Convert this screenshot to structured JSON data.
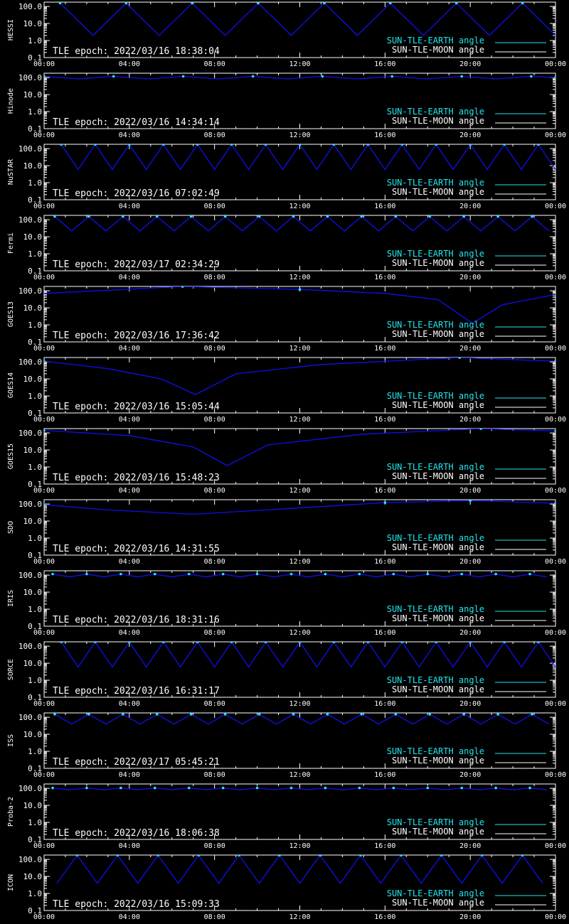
{
  "colors": {
    "background": "#000000",
    "foreground": "#ffffff",
    "earth_curve": "#1010ee",
    "earth_highlight": "#22e6ee",
    "earth_legend": "#22e6ee",
    "moon_legend": "#ffffff"
  },
  "legend": {
    "earth": "SUN-TLE-EARTH angle",
    "moon": "SUN-TLE-MOON angle"
  },
  "axes": {
    "x_ticks": [
      "00:00",
      "04:00",
      "08:00",
      "12:00",
      "16:00",
      "20:00",
      "00:00"
    ],
    "y_ticks": [
      "100.0",
      "10.0",
      "1.0",
      "0.1"
    ],
    "x_range_hours": [
      0,
      24
    ],
    "y_range": [
      0.1,
      180
    ],
    "y_scale": "log",
    "grid": false
  },
  "chart_data": [
    {
      "type": "line",
      "ylabel": "HESSI",
      "annotation": "TLE epoch: 2022/03/16 18:38:04",
      "series": [
        {
          "name": "SUN-TLE-EARTH angle",
          "x": [
            0.75,
            2.3,
            3.85,
            5.4,
            6.95,
            8.5,
            10.05,
            11.6,
            13.15,
            14.7,
            16.25,
            17.8,
            19.35,
            20.9,
            22.45,
            24.0
          ],
          "y": [
            158,
            2,
            158,
            2,
            158,
            2,
            158,
            2,
            158,
            2,
            158,
            2,
            158,
            2,
            158,
            2
          ]
        }
      ]
    },
    {
      "type": "line",
      "ylabel": "Hinode",
      "annotation": "TLE epoch: 2022/03/16 14:34:14",
      "series": [
        {
          "name": "SUN-TLE-EARTH angle",
          "x": [
            0,
            1.63,
            3.26,
            4.9,
            6.53,
            8.16,
            9.8,
            11.43,
            13.06,
            14.7,
            16.33,
            17.96,
            19.6,
            21.23,
            22.86,
            24
          ],
          "y": [
            118,
            83,
            118,
            83,
            118,
            83,
            118,
            83,
            118,
            83,
            118,
            83,
            118,
            83,
            118,
            100
          ]
        }
      ]
    },
    {
      "type": "line",
      "ylabel": "NuSTAR",
      "annotation": "TLE epoch: 2022/03/16 07:02:49",
      "series": [
        {
          "name": "SUN-TLE-EARTH angle",
          "x": [
            0.8,
            1.6,
            2.4,
            3.2,
            4.0,
            4.8,
            5.6,
            6.4,
            7.2,
            8.0,
            8.8,
            9.6,
            10.4,
            11.2,
            12.0,
            12.8,
            13.6,
            14.4,
            15.2,
            16.0,
            16.8,
            17.6,
            18.4,
            19.2,
            20.0,
            20.8,
            21.6,
            22.4,
            23.2,
            24.0
          ],
          "y": [
            175,
            6,
            175,
            6,
            175,
            6,
            175,
            6,
            175,
            6,
            175,
            6,
            175,
            6,
            175,
            6,
            175,
            6,
            175,
            6,
            175,
            6,
            175,
            6,
            175,
            6,
            175,
            6,
            175,
            6
          ]
        }
      ]
    },
    {
      "type": "line",
      "ylabel": "Fermi",
      "annotation": "TLE epoch: 2022/03/17 02:34:29",
      "series": [
        {
          "name": "SUN-TLE-EARTH angle",
          "x": [
            0.5,
            1.3,
            2.1,
            2.9,
            3.7,
            4.5,
            5.3,
            6.1,
            6.9,
            7.7,
            8.5,
            9.3,
            10.1,
            10.9,
            11.7,
            12.5,
            13.3,
            14.1,
            14.9,
            15.7,
            16.5,
            17.3,
            18.1,
            18.9,
            19.7,
            20.5,
            21.3,
            22.1,
            22.9,
            23.7
          ],
          "y": [
            155,
            22,
            155,
            22,
            155,
            22,
            155,
            22,
            155,
            22,
            155,
            22,
            155,
            22,
            155,
            22,
            155,
            22,
            155,
            22,
            155,
            22,
            155,
            22,
            155,
            22,
            155,
            22,
            155,
            22
          ]
        }
      ]
    },
    {
      "type": "line",
      "ylabel": "GOES13",
      "annotation": "TLE epoch: 2022/03/16 17:36:42",
      "series": [
        {
          "name": "SUN-TLE-EARTH angle",
          "x": [
            0,
            6.5,
            12,
            16,
            18.5,
            20.1,
            21.5,
            24
          ],
          "y": [
            70,
            178,
            120,
            70,
            30,
            1.2,
            15,
            60
          ]
        }
      ]
    },
    {
      "type": "line",
      "ylabel": "GOES14",
      "annotation": "TLE epoch: 2022/03/16 15:05:44",
      "series": [
        {
          "name": "SUN-TLE-EARTH angle",
          "x": [
            0,
            3,
            5.5,
            7.1,
            9,
            13,
            19.5,
            24
          ],
          "y": [
            110,
            40,
            10,
            1.2,
            20,
            70,
            178,
            110
          ]
        }
      ]
    },
    {
      "type": "line",
      "ylabel": "GOES15",
      "annotation": "TLE epoch: 2022/03/16 15:48:23",
      "series": [
        {
          "name": "SUN-TLE-EARTH angle",
          "x": [
            0,
            4,
            7,
            8.6,
            10.5,
            15,
            20.5,
            24
          ],
          "y": [
            140,
            70,
            15,
            1.2,
            20,
            85,
            178,
            130
          ]
        }
      ]
    },
    {
      "type": "line",
      "ylabel": "SDO",
      "annotation": "TLE epoch: 2022/03/16 14:31:55",
      "series": [
        {
          "name": "SUN-TLE-EARTH angle",
          "x": [
            0,
            3,
            7,
            11,
            16,
            20,
            24
          ],
          "y": [
            90,
            45,
            25,
            50,
            120,
            160,
            110
          ]
        }
      ]
    },
    {
      "type": "line",
      "ylabel": "IRIS",
      "annotation": "TLE epoch: 2022/03/16 18:31:16",
      "series": [
        {
          "name": "SUN-TLE-EARTH angle",
          "x": [
            0.4,
            1.2,
            2.0,
            2.8,
            3.6,
            4.4,
            5.2,
            6.0,
            6.8,
            7.6,
            8.4,
            9.2,
            10.0,
            10.8,
            11.6,
            12.4,
            13.2,
            14.0,
            14.8,
            15.6,
            16.4,
            17.2,
            18.0,
            18.8,
            19.6,
            20.4,
            21.2,
            22.0,
            22.8,
            23.6
          ],
          "y": [
            115,
            78,
            115,
            78,
            115,
            78,
            115,
            78,
            115,
            78,
            115,
            78,
            115,
            78,
            115,
            78,
            115,
            78,
            115,
            78,
            115,
            78,
            115,
            78,
            115,
            78,
            115,
            78,
            115,
            78
          ]
        }
      ]
    },
    {
      "type": "line",
      "ylabel": "SORCE",
      "annotation": "TLE epoch: 2022/03/16 16:31:17",
      "series": [
        {
          "name": "SUN-TLE-EARTH angle",
          "x": [
            0.8,
            1.6,
            2.4,
            3.2,
            4.0,
            4.8,
            5.6,
            6.4,
            7.2,
            8.0,
            8.8,
            9.6,
            10.4,
            11.2,
            12.0,
            12.8,
            13.6,
            14.4,
            15.2,
            16.0,
            16.8,
            17.6,
            18.4,
            19.2,
            20.0,
            20.8,
            21.6,
            22.4,
            23.2,
            24.0
          ],
          "y": [
            175,
            6,
            175,
            6,
            175,
            6,
            175,
            6,
            175,
            6,
            175,
            6,
            175,
            6,
            175,
            6,
            175,
            6,
            175,
            6,
            175,
            6,
            175,
            6,
            175,
            6,
            175,
            6,
            175,
            6
          ]
        }
      ]
    },
    {
      "type": "line",
      "ylabel": "ISS",
      "annotation": "TLE epoch: 2022/03/17 05:45:21",
      "series": [
        {
          "name": "SUN-TLE-EARTH angle",
          "x": [
            0.5,
            1.3,
            2.1,
            2.9,
            3.7,
            4.5,
            5.3,
            6.1,
            6.9,
            7.7,
            8.5,
            9.3,
            10.1,
            10.9,
            11.7,
            12.5,
            13.3,
            14.1,
            14.9,
            15.7,
            16.5,
            17.3,
            18.1,
            18.9,
            19.7,
            20.5,
            21.3,
            22.1,
            22.9,
            23.7
          ],
          "y": [
            150,
            40,
            150,
            40,
            150,
            40,
            150,
            40,
            150,
            40,
            150,
            40,
            150,
            40,
            150,
            40,
            150,
            40,
            150,
            40,
            150,
            40,
            150,
            40,
            150,
            40,
            150,
            40,
            150,
            40
          ]
        }
      ]
    },
    {
      "type": "line",
      "ylabel": "Proba-2",
      "annotation": "TLE epoch: 2022/03/16 18:06:38",
      "series": [
        {
          "name": "SUN-TLE-EARTH angle",
          "x": [
            0.4,
            1.2,
            2.0,
            2.8,
            3.6,
            4.4,
            5.2,
            6.0,
            6.8,
            7.6,
            8.4,
            9.2,
            10.0,
            10.8,
            11.6,
            12.4,
            13.2,
            14.0,
            14.8,
            15.6,
            16.4,
            17.2,
            18.0,
            18.8,
            19.6,
            20.4,
            21.2,
            22.0,
            22.8,
            23.6
          ],
          "y": [
            105,
            82,
            105,
            82,
            105,
            82,
            105,
            82,
            105,
            82,
            105,
            82,
            105,
            82,
            105,
            82,
            105,
            82,
            105,
            82,
            105,
            82,
            105,
            82,
            105,
            82,
            105,
            82,
            105,
            82
          ]
        }
      ]
    },
    {
      "type": "line",
      "ylabel": "ICON",
      "annotation": "TLE epoch: 2022/03/16 15:09:33",
      "series": [
        {
          "name": "SUN-TLE-EARTH angle",
          "x": [
            0.6,
            1.55,
            2.5,
            3.45,
            4.4,
            5.35,
            6.3,
            7.25,
            8.2,
            9.15,
            10.1,
            11.05,
            12.0,
            12.95,
            13.9,
            14.85,
            15.8,
            16.75,
            17.7,
            18.65,
            19.6,
            20.55,
            21.5,
            22.45,
            23.4
          ],
          "y": [
            4,
            175,
            4,
            175,
            4,
            175,
            4,
            175,
            4,
            175,
            4,
            175,
            4,
            175,
            4,
            175,
            4,
            175,
            4,
            175,
            4,
            175,
            4,
            175,
            4
          ]
        }
      ]
    }
  ]
}
